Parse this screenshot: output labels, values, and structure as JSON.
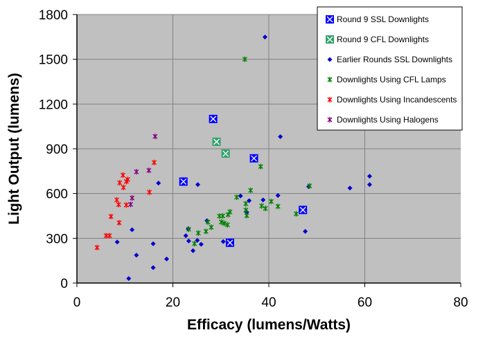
{
  "chart_data": {
    "type": "scatter",
    "title": "",
    "xlabel": "Efficacy (lumens/Watts)",
    "ylabel": "Light Output (lumens)",
    "xlim": [
      0,
      80
    ],
    "ylim": [
      0,
      1800
    ],
    "x_ticks": [
      "0",
      "20",
      "40",
      "60",
      "80"
    ],
    "y_ticks": [
      "0",
      "300",
      "600",
      "900",
      "1200",
      "1500",
      "1800"
    ],
    "grid": true,
    "legend_position": "top-right",
    "series": [
      {
        "name": "Round 9 SSL Downlights",
        "marker": "square-x",
        "color": "#0000ff",
        "points": [
          [
            22.2,
            680
          ],
          [
            28.4,
            1100
          ],
          [
            36.9,
            836
          ],
          [
            47.1,
            490
          ],
          [
            31.9,
            270
          ]
        ]
      },
      {
        "name": "Round 9 CFL Downlights",
        "marker": "square-x",
        "color": "#33a36b",
        "points": [
          [
            29.1,
            947
          ],
          [
            31.0,
            868
          ]
        ]
      },
      {
        "name": "Earlier Rounds SSL Downlights",
        "marker": "diamond",
        "color": "#0000cc",
        "points": [
          [
            39.2,
            1649
          ],
          [
            42.4,
            981
          ],
          [
            25.2,
            660
          ],
          [
            17.0,
            670
          ],
          [
            27.1,
            418
          ],
          [
            23.2,
            363
          ],
          [
            22.7,
            317
          ],
          [
            23.3,
            282
          ],
          [
            25.1,
            286
          ],
          [
            25.9,
            260
          ],
          [
            24.2,
            217
          ],
          [
            30.5,
            278
          ],
          [
            18.7,
            161
          ],
          [
            34.1,
            584
          ],
          [
            35.9,
            552
          ],
          [
            35.4,
            475
          ],
          [
            38.8,
            557
          ],
          [
            41.9,
            587
          ],
          [
            48.3,
            646
          ],
          [
            47.6,
            346
          ],
          [
            11.5,
            357
          ],
          [
            8.4,
            275
          ],
          [
            15.9,
            263
          ],
          [
            12.4,
            187
          ],
          [
            15.9,
            103
          ],
          [
            10.8,
            30
          ],
          [
            61.0,
            716
          ],
          [
            61.0,
            660
          ],
          [
            56.9,
            637
          ]
        ]
      },
      {
        "name": "Downlights Using CFL Lamps",
        "marker": "asterisk",
        "color": "#008000",
        "points": [
          [
            35.0,
            1500
          ],
          [
            38.3,
            781
          ],
          [
            36.2,
            621
          ],
          [
            33.3,
            575
          ],
          [
            35.2,
            532
          ],
          [
            35.2,
            489
          ],
          [
            35.4,
            452
          ],
          [
            38.5,
            517
          ],
          [
            39.3,
            500
          ],
          [
            40.5,
            547
          ],
          [
            41.9,
            514
          ],
          [
            45.7,
            464
          ],
          [
            48.5,
            651
          ],
          [
            31.9,
            477
          ],
          [
            31.5,
            458
          ],
          [
            29.7,
            449
          ],
          [
            30.4,
            450
          ],
          [
            30.1,
            409
          ],
          [
            30.7,
            400
          ],
          [
            31.4,
            390
          ],
          [
            28.0,
            374
          ],
          [
            27.3,
            409
          ],
          [
            26.9,
            346
          ],
          [
            25.3,
            335
          ],
          [
            23.3,
            361
          ],
          [
            24.5,
            264
          ]
        ]
      },
      {
        "name": "Downlights Using Incandescents",
        "marker": "asterisk",
        "color": "#ff0000",
        "points": [
          [
            16.1,
            808
          ],
          [
            9.6,
            723
          ],
          [
            10.6,
            694
          ],
          [
            10.3,
            680
          ],
          [
            8.9,
            672
          ],
          [
            9.7,
            641
          ],
          [
            15.1,
            609
          ],
          [
            8.3,
            557
          ],
          [
            8.7,
            526
          ],
          [
            10.3,
            523
          ],
          [
            7.1,
            446
          ],
          [
            8.8,
            404
          ],
          [
            6.1,
            317
          ],
          [
            6.8,
            317
          ],
          [
            4.2,
            238
          ]
        ]
      },
      {
        "name": "Downlights Using Halogens",
        "marker": "asterisk",
        "color": "#800080",
        "points": [
          [
            16.3,
            983
          ],
          [
            12.4,
            746
          ],
          [
            15.0,
            755
          ],
          [
            11.5,
            570
          ],
          [
            11.2,
            527
          ]
        ]
      }
    ]
  }
}
